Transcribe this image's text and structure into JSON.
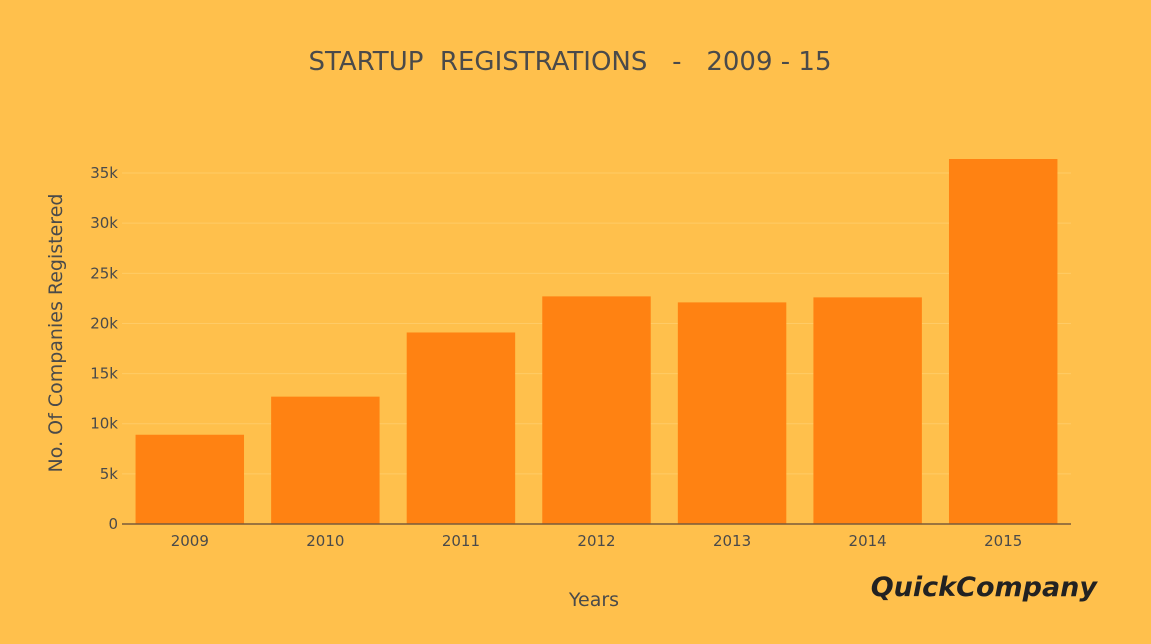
{
  "chart_data": {
    "type": "bar",
    "title": "STARTUP  REGISTRATIONS   -   2009 - 15",
    "xlabel": "Years",
    "ylabel": "No. Of Companies Registered",
    "categories": [
      "2009",
      "2010",
      "2011",
      "2012",
      "2013",
      "2014",
      "2015"
    ],
    "values": [
      8900,
      12700,
      19100,
      22700,
      22100,
      22600,
      36400
    ],
    "ylim": [
      0,
      36400
    ],
    "y_ticks": [
      0,
      5000,
      10000,
      15000,
      20000,
      25000,
      30000,
      35000
    ],
    "y_tick_labels": [
      "0",
      "5k",
      "10k",
      "15k",
      "20k",
      "25k",
      "30k",
      "35k"
    ],
    "grid": true,
    "legend": "none",
    "colors": {
      "background": "#FFC04C",
      "bar": "#FF8212",
      "grid": "#FFCB66",
      "axis": "#7a5a3a",
      "text": "#4a4a4a"
    }
  },
  "brand": {
    "logo_text": "QuickCompany"
  }
}
